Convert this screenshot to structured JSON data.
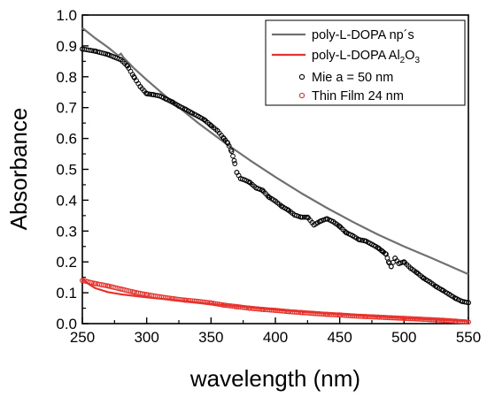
{
  "chart_data": {
    "type": "line",
    "title": "",
    "xlabel": "wavelength (nm)",
    "ylabel": "Absorbance",
    "xlim": [
      250,
      550
    ],
    "ylim": [
      0.0,
      1.0
    ],
    "grid": false,
    "legend_position": "top-right",
    "x_ticks": [
      250,
      300,
      350,
      400,
      450,
      500,
      550
    ],
    "y_ticks": [
      0.0,
      0.1,
      0.2,
      0.3,
      0.4,
      0.5,
      0.6,
      0.7,
      0.8,
      0.9,
      1.0
    ],
    "x_tick_labels": [
      "250",
      "300",
      "350",
      "400",
      "450",
      "500",
      "550"
    ],
    "y_tick_labels": [
      "0.0",
      "0.1",
      "0.2",
      "0.3",
      "0.4",
      "0.5",
      "0.6",
      "0.7",
      "0.8",
      "0.9",
      "1.0"
    ],
    "series": [
      {
        "name": "poly-L-DOPA np´s",
        "style": "line",
        "color": "#707070",
        "x": [
          250,
          260,
          270,
          278,
          280,
          282,
          290,
          300,
          320,
          340,
          360,
          380,
          400,
          420,
          440,
          460,
          480,
          500,
          520,
          550
        ],
        "y": [
          0.958,
          0.925,
          0.895,
          0.868,
          0.875,
          0.862,
          0.828,
          0.79,
          0.718,
          0.65,
          0.588,
          0.53,
          0.475,
          0.423,
          0.375,
          0.33,
          0.288,
          0.25,
          0.215,
          0.16
        ]
      },
      {
        "name": "poly-L-DOPA Al2O3",
        "legend_label_base": "poly-L-DOPA Al",
        "legend_label_sub1": "2",
        "legend_label_mid": "O",
        "legend_label_sub2": "3",
        "style": "line",
        "color": "#e8322c",
        "x": [
          250,
          255,
          260,
          270,
          280,
          300,
          320,
          350,
          400,
          450,
          500,
          550
        ],
        "y": [
          0.145,
          0.128,
          0.115,
          0.102,
          0.095,
          0.085,
          0.077,
          0.064,
          0.045,
          0.03,
          0.018,
          0.008
        ]
      },
      {
        "name": "Mie a = 50 nm",
        "style": "markers",
        "color": "#000000",
        "x": [
          250,
          260,
          270,
          280,
          285,
          290,
          295,
          300,
          305,
          310,
          315,
          320,
          325,
          330,
          335,
          340,
          345,
          350,
          355,
          360,
          363,
          366,
          368,
          370,
          373,
          376,
          380,
          385,
          390,
          395,
          400,
          405,
          410,
          415,
          420,
          425,
          430,
          435,
          440,
          445,
          450,
          455,
          460,
          465,
          470,
          475,
          480,
          483,
          486,
          488,
          490,
          493,
          496,
          500,
          505,
          510,
          515,
          520,
          525,
          530,
          535,
          540,
          545,
          550
        ],
        "y": [
          0.89,
          0.883,
          0.872,
          0.855,
          0.835,
          0.8,
          0.768,
          0.745,
          0.742,
          0.738,
          0.728,
          0.718,
          0.705,
          0.695,
          0.683,
          0.672,
          0.66,
          0.642,
          0.625,
          0.6,
          0.585,
          0.558,
          0.528,
          0.49,
          0.47,
          0.466,
          0.458,
          0.44,
          0.432,
          0.41,
          0.397,
          0.38,
          0.368,
          0.352,
          0.345,
          0.345,
          0.32,
          0.332,
          0.34,
          0.33,
          0.315,
          0.295,
          0.285,
          0.272,
          0.268,
          0.257,
          0.245,
          0.235,
          0.225,
          0.2,
          0.185,
          0.212,
          0.195,
          0.2,
          0.18,
          0.165,
          0.148,
          0.135,
          0.12,
          0.108,
          0.095,
          0.082,
          0.072,
          0.068
        ]
      },
      {
        "name": "Thin Film 24 nm",
        "style": "markers",
        "color": "#e8322c",
        "x": [
          250,
          260,
          270,
          280,
          290,
          300,
          310,
          320,
          330,
          340,
          350,
          360,
          370,
          380,
          390,
          400,
          410,
          420,
          430,
          440,
          450,
          460,
          470,
          480,
          490,
          500,
          510,
          520,
          530,
          540,
          550
        ],
        "y": [
          0.14,
          0.13,
          0.122,
          0.112,
          0.102,
          0.094,
          0.087,
          0.081,
          0.076,
          0.072,
          0.067,
          0.06,
          0.055,
          0.05,
          0.046,
          0.043,
          0.039,
          0.036,
          0.033,
          0.03,
          0.028,
          0.025,
          0.023,
          0.021,
          0.019,
          0.017,
          0.015,
          0.013,
          0.011,
          0.008,
          0.005
        ]
      }
    ]
  }
}
